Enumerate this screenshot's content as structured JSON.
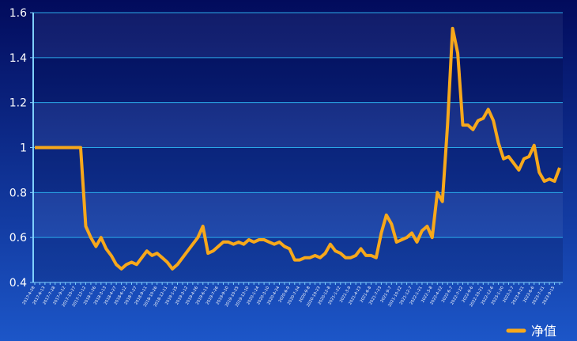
{
  "chart_data": {
    "type": "line",
    "categories": [
      "2017-4-28",
      null,
      "2017-6-13",
      null,
      "2017-7-28",
      null,
      "2017-9-12",
      null,
      "2017-10-27",
      null,
      "2017-12-12",
      null,
      "2018-1-26",
      null,
      "2018-3-13",
      null,
      "2018-4-27",
      null,
      "2018-6-12",
      null,
      "2018-7-27",
      null,
      "2018-9-11",
      null,
      "2018-10-26",
      null,
      "2018-12-11",
      null,
      "2019-1-25",
      null,
      "2019-3-12",
      null,
      "2019-4-26",
      null,
      "2019-6-11",
      null,
      "2019-7-26",
      null,
      "2019-9-10",
      null,
      "2019-10-25",
      null,
      "2019-12-10",
      null,
      "2020-1-24",
      null,
      "2020-3-10",
      null,
      "2020-4-24",
      null,
      "2020-6-9",
      null,
      "2020-7-24",
      null,
      "2020-9-8",
      null,
      "2020-10-23",
      null,
      "2020-12-8",
      null,
      "2021-1-22",
      null,
      "2021-3-9",
      null,
      "2021-4-23",
      null,
      "2021-6-8",
      null,
      "2021-7-23",
      null,
      "2021-9-7",
      null,
      "2021-10-22",
      null,
      "2021-12-7",
      null,
      "2022-1-21",
      null,
      "2022-3-8",
      null,
      "2022-4-22",
      null,
      "2022-6-7",
      null,
      "2022-7-22",
      null,
      "2022-9-6",
      null,
      "2022-10-21",
      null,
      "2022-12-6",
      null,
      "2023-1-20",
      null,
      "2023-3-7",
      null,
      "2023-4-21",
      null,
      "2023-6-6",
      null,
      "2023-7-21",
      null,
      "2023-9-15",
      null
    ],
    "series": [
      {
        "name": "净值",
        "color": "#f7a81b",
        "values": [
          1.0,
          1.0,
          1.0,
          1.0,
          1.0,
          1.0,
          1.0,
          1.0,
          1.0,
          1.0,
          0.65,
          0.6,
          0.56,
          0.6,
          0.55,
          0.52,
          0.48,
          0.46,
          0.48,
          0.49,
          0.48,
          0.51,
          0.54,
          0.52,
          0.53,
          0.51,
          0.49,
          0.46,
          0.48,
          0.51,
          0.54,
          0.57,
          0.6,
          0.65,
          0.53,
          0.54,
          0.56,
          0.58,
          0.58,
          0.57,
          0.58,
          0.57,
          0.59,
          0.58,
          0.59,
          0.59,
          0.58,
          0.57,
          0.58,
          0.56,
          0.55,
          0.5,
          0.5,
          0.51,
          0.51,
          0.52,
          0.51,
          0.53,
          0.57,
          0.54,
          0.53,
          0.51,
          0.51,
          0.52,
          0.55,
          0.52,
          0.52,
          0.51,
          0.62,
          0.7,
          0.66,
          0.58,
          0.59,
          0.6,
          0.62,
          0.58,
          0.63,
          0.65,
          0.6,
          0.8,
          0.76,
          1.1,
          1.53,
          1.42,
          1.1,
          1.1,
          1.08,
          1.12,
          1.13,
          1.17,
          1.12,
          1.02,
          0.95,
          0.96,
          0.93,
          0.9,
          0.95,
          0.96,
          1.01,
          0.89,
          0.85,
          0.86,
          0.85,
          0.91
        ]
      }
    ],
    "ylim": [
      0.4,
      1.6
    ],
    "yticks": [
      0.4,
      0.6,
      0.8,
      1,
      1.2,
      1.4,
      1.6
    ],
    "grid": true,
    "legend": "bottom-right"
  }
}
